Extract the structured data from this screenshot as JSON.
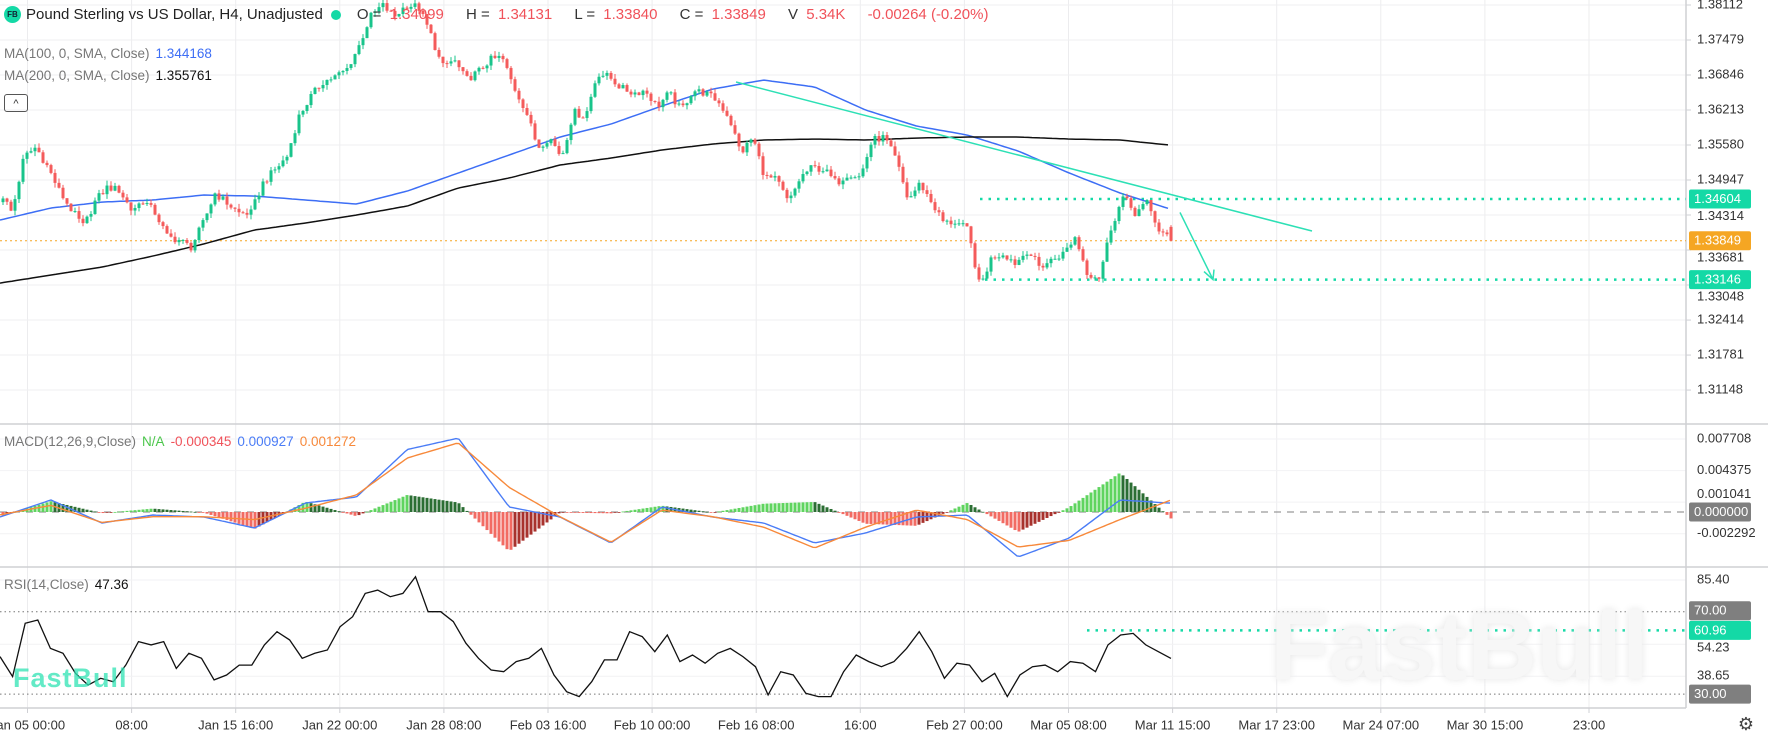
{
  "header": {
    "logo": "FB",
    "title": "Pound Sterling vs US Dollar, H4, Unadjusted",
    "open_label": "O =",
    "open": "1.34099",
    "high_label": "H =",
    "high": "1.34131",
    "low_label": "L =",
    "low": "1.33840",
    "close_label": "C =",
    "close": "1.33849",
    "volume_label": "V",
    "volume": "5.34K",
    "change": "-0.00264 (-0.20%)"
  },
  "indicators": {
    "ma100": {
      "label": "MA(100, 0, SMA, Close)",
      "value": "1.344168",
      "color": "#3d6ef5"
    },
    "ma200": {
      "label": "MA(200, 0, SMA, Close)",
      "value": "1.355761",
      "color": "#111111"
    },
    "collapse_icon": "chevron-up-icon",
    "macd": {
      "label": "MACD(12,26,9,Close)",
      "hist": "N/A",
      "diff": "-0.000345",
      "macd": "0.000927",
      "signal": "0.001272"
    },
    "rsi": {
      "label": "RSI(14,Close)",
      "value": "47.36"
    }
  },
  "colors": {
    "up": "#19c48b",
    "down": "#f45b5b",
    "accent": "#14d9a6",
    "last_price": "#f5a623",
    "macd_line": "#4a7cf6",
    "signal_line": "#f7893b",
    "rsi_line": "#111111"
  },
  "watermark": "FastBull",
  "settings_icon": "gear-icon",
  "chart_data": {
    "type": "candlestick",
    "symbol": "Pound Sterling vs US Dollar",
    "timeframe": "H4",
    "time_labels": [
      "Jan 05 00:00",
      "08:00",
      "Jan 15 16:00",
      "Jan 22 00:00",
      "Jan 28 08:00",
      "Feb 03 16:00",
      "Feb 10 00:00",
      "Feb 16 08:00",
      "16:00",
      "Feb 27 00:00",
      "Mar 05 08:00",
      "Mar 11 15:00",
      "Mar 17 23:00",
      "Mar 24 07:00",
      "Mar 30 15:00",
      "23:00"
    ],
    "price_ticks": [
      "1.38112",
      "1.37479",
      "1.36846",
      "1.36213",
      "1.35580",
      "1.34947",
      "1.34314",
      "1.33681",
      "1.33048",
      "1.32414",
      "1.31781",
      "1.31148"
    ],
    "price_badges": [
      {
        "value": "1.34604",
        "kind": "level"
      },
      {
        "value": "1.33849",
        "kind": "last"
      },
      {
        "value": "1.33146",
        "kind": "level"
      }
    ],
    "last_bar": {
      "open": 1.34099,
      "high": 1.34131,
      "low": 1.3384,
      "close": 1.33849
    },
    "close_path": [
      1.3476,
      1.3435,
      1.3536,
      1.3554,
      1.3518,
      1.3473,
      1.344,
      1.341,
      1.3458,
      1.3482,
      1.3476,
      1.344,
      1.3458,
      1.3435,
      1.3392,
      1.3386,
      1.3373,
      1.3417,
      1.3471,
      1.3453,
      1.3435,
      1.3435,
      1.3489,
      1.3513,
      1.3536,
      1.3609,
      1.3645,
      1.3672,
      1.3681,
      1.3694,
      1.3735,
      1.379,
      1.3811,
      1.379,
      1.3811,
      1.3808,
      1.3761,
      1.3699,
      1.3712,
      1.3676,
      1.369,
      1.3712,
      1.3717,
      1.3663,
      1.3621,
      1.3554,
      1.3572,
      1.3536,
      1.3618,
      1.3609,
      1.3688,
      1.3681,
      1.3661,
      1.3652,
      1.3657,
      1.3627,
      1.3652,
      1.3621,
      1.3657,
      1.3652,
      1.3639,
      1.3609,
      1.3543,
      1.3572,
      1.35,
      1.3495,
      1.3453,
      1.35,
      1.3518,
      1.3513,
      1.3489,
      1.3507,
      1.35,
      1.3567,
      1.3572,
      1.3531,
      1.3458,
      1.3489,
      1.3453,
      1.3417,
      1.3419,
      1.3404,
      1.3301,
      1.3355,
      1.3362,
      1.3344,
      1.3368,
      1.3337,
      1.335,
      1.3362,
      1.3392,
      1.3326,
      1.3319,
      1.341,
      1.3464,
      1.3435,
      1.3453,
      1.3404,
      1.3385
    ],
    "moving_averages": [
      {
        "name": "MA(100, 0, SMA, Close)",
        "color": "#3d6ef5",
        "values": [
          1.34223,
          1.3444,
          1.34548,
          1.34585,
          1.34675,
          1.34657,
          1.34585,
          1.34512,
          1.34747,
          1.35073,
          1.35399,
          1.35724,
          1.35959,
          1.36285,
          1.36592,
          1.36755,
          1.36629,
          1.36213,
          1.35923,
          1.3576,
          1.35471,
          1.35073,
          1.34711,
          1.34417
        ]
      },
      {
        "name": "MA(200, 0, SMA, Close)",
        "color": "#111111",
        "values": [
          1.33083,
          1.33228,
          1.33372,
          1.33571,
          1.33789,
          1.34042,
          1.34169,
          1.34313,
          1.34476,
          1.34802,
          1.34983,
          1.35218,
          1.35344,
          1.35489,
          1.35598,
          1.3567,
          1.35688,
          1.3567,
          1.35706,
          1.35724,
          1.35724,
          1.35688,
          1.3567,
          1.35576
        ]
      }
    ],
    "drawings": {
      "trendline": {
        "from_price": 1.36719,
        "to_price": 1.34024,
        "color": "#2de0b5"
      },
      "arrow": {
        "from_price": 1.3436,
        "to_price": 1.33146,
        "color": "#2de0b5"
      },
      "levels": [
        1.34604,
        1.33146
      ]
    },
    "macd": {
      "ticks": [
        "0.007708",
        "0.004375",
        "0.001041",
        "-0.002292"
      ],
      "zero_badge": "0.000000",
      "macd_values": [
        -0.00053,
        0.00127,
        -0.00116,
        -0.00032,
        -0.00053,
        -0.00169,
        0.00095,
        0.00158,
        0.0066,
        0.0078,
        0.00053,
        -0.00053,
        -0.00327,
        0.00053,
        -0.00053,
        -0.00116,
        -0.00327,
        -0.00222,
        -0.00053,
        -0.00032,
        -0.00475,
        -0.00275,
        0.00127,
        0.00093
      ],
      "signal_values": [
        -0.0003,
        0.0007,
        -0.0011,
        -0.0005,
        -0.0005,
        -0.0008,
        0.0004,
        0.0018,
        0.0057,
        0.0073,
        0.0026,
        -0.0005,
        -0.0032,
        0.0002,
        -0.0005,
        -0.0016,
        -0.0038,
        -0.0016,
        0.0002,
        -0.0008,
        -0.0037,
        -0.003,
        -0.0008,
        0.00127
      ]
    },
    "rsi": {
      "ticks": [
        "85.40",
        "54.23",
        "38.65"
      ],
      "badges": [
        {
          "value": "70.00",
          "kind": "band"
        },
        {
          "value": "60.96",
          "kind": "level"
        },
        {
          "value": "30.00",
          "kind": "band"
        }
      ],
      "values": [
        48.2,
        38.5,
        64.4,
        66.0,
        52.2,
        49.8,
        40.1,
        34.4,
        37.7,
        36.0,
        44.2,
        55.5,
        53.9,
        55.5,
        42.5,
        49.8,
        47.4,
        36.9,
        39.3,
        44.1,
        44.1,
        53.9,
        60.3,
        56.3,
        47.4,
        49.8,
        51.4,
        62.7,
        67.6,
        78.9,
        80.5,
        77.3,
        78.9,
        87.0,
        70.0,
        70.0,
        65.2,
        54.7,
        47.4,
        41.7,
        40.9,
        45.8,
        47.4,
        52.2,
        39.3,
        31.2,
        28.8,
        36.1,
        46.6,
        46.6,
        60.3,
        57.9,
        50.6,
        58.7,
        45.8,
        49.0,
        45.0,
        49.8,
        52.2,
        48.2,
        43.3,
        29.6,
        40.9,
        39.3,
        30.4,
        28.8,
        28.8,
        40.9,
        49.0,
        45.8,
        43.3,
        45.8,
        52.2,
        60.3,
        50.6,
        37.7,
        45.0,
        44.1,
        36.0,
        40.1,
        28.8,
        39.3,
        43.3,
        44.1,
        40.9,
        45.8,
        45.0,
        40.9,
        53.9,
        58.7,
        59.5,
        53.9,
        50.6,
        47.36
      ]
    }
  }
}
